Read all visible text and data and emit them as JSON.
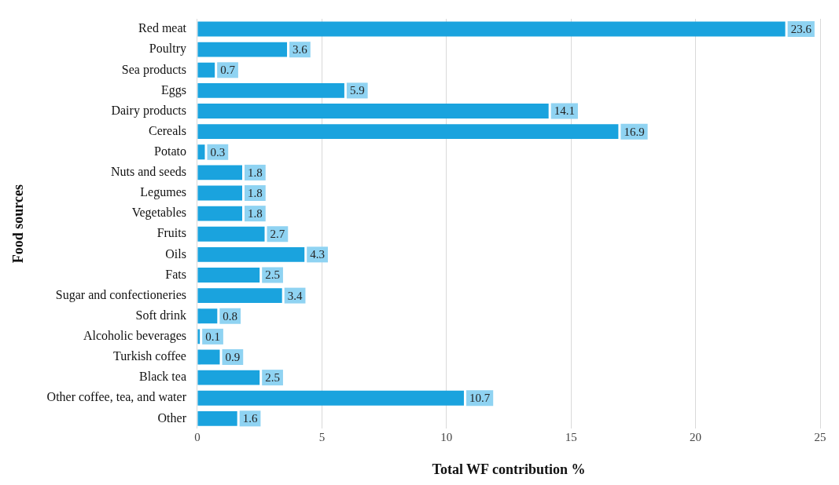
{
  "chart_data": {
    "type": "bar",
    "orientation": "horizontal",
    "xlabel": "Total WF contribution %",
    "ylabel": "Food sources",
    "categories": [
      "Red meat",
      "Poultry",
      "Sea products",
      "Eggs",
      "Dairy products",
      "Cereals",
      "Potato",
      "Nuts and seeds",
      "Legumes",
      "Vegetables",
      "Fruits",
      "Oils",
      "Fats",
      "Sugar and confectioneries",
      "Soft drink",
      "Alcoholic beverages",
      "Turkish coffee",
      "Black tea",
      "Other coffee, tea, and water",
      "Other"
    ],
    "values": [
      23.6,
      3.6,
      0.7,
      5.9,
      14.1,
      16.9,
      0.3,
      1.8,
      1.8,
      1.8,
      2.7,
      4.3,
      2.5,
      3.4,
      0.8,
      0.1,
      0.9,
      2.5,
      10.7,
      1.6
    ],
    "color": "#1aa3de",
    "xlim": [
      0,
      25
    ],
    "xticks": [
      0,
      5,
      10,
      15,
      20,
      25
    ],
    "grid": "x",
    "data_labels": true,
    "legend": false
  }
}
